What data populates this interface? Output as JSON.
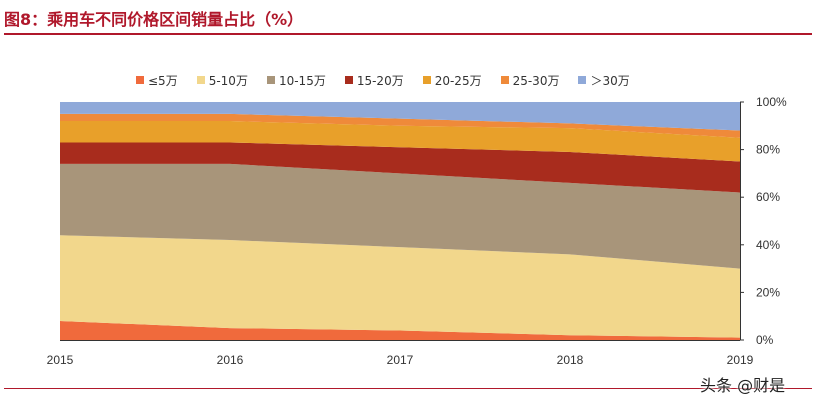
{
  "title": "图8：乘用车不同价格区间销量占比（%）",
  "watermark": "头条 @财是",
  "colors": {
    "title": "#b0182b",
    "series": [
      "#f06a3c",
      "#f2d78c",
      "#a8957a",
      "#a82c1d",
      "#e8a02a",
      "#ef8a3a",
      "#8fa9d9"
    ]
  },
  "chart_data": {
    "type": "area",
    "stacked": "percent",
    "title": "图8：乘用车不同价格区间销量占比（%）",
    "xlabel": "",
    "ylabel": "",
    "x": [
      "2015",
      "2016",
      "2017",
      "2018",
      "2019"
    ],
    "ylim": [
      0,
      100
    ],
    "y_ticks": [
      "0%",
      "20%",
      "40%",
      "60%",
      "80%",
      "100%"
    ],
    "legend_position": "top",
    "grid": false,
    "series": [
      {
        "name": "≤5万",
        "values": [
          8,
          5,
          4,
          2,
          1
        ]
      },
      {
        "name": "5-10万",
        "values": [
          36,
          37,
          35,
          34,
          29
        ]
      },
      {
        "name": "10-15万",
        "values": [
          30,
          32,
          31,
          30,
          32
        ]
      },
      {
        "name": "15-20万",
        "values": [
          9,
          9,
          11,
          13,
          13
        ]
      },
      {
        "name": "20-25万",
        "values": [
          9,
          9,
          9,
          10,
          10
        ]
      },
      {
        "name": "25-30万",
        "values": [
          3,
          3,
          3,
          2,
          3
        ]
      },
      {
        "name": "＞30万",
        "values": [
          5,
          5,
          7,
          9,
          12
        ]
      }
    ]
  }
}
